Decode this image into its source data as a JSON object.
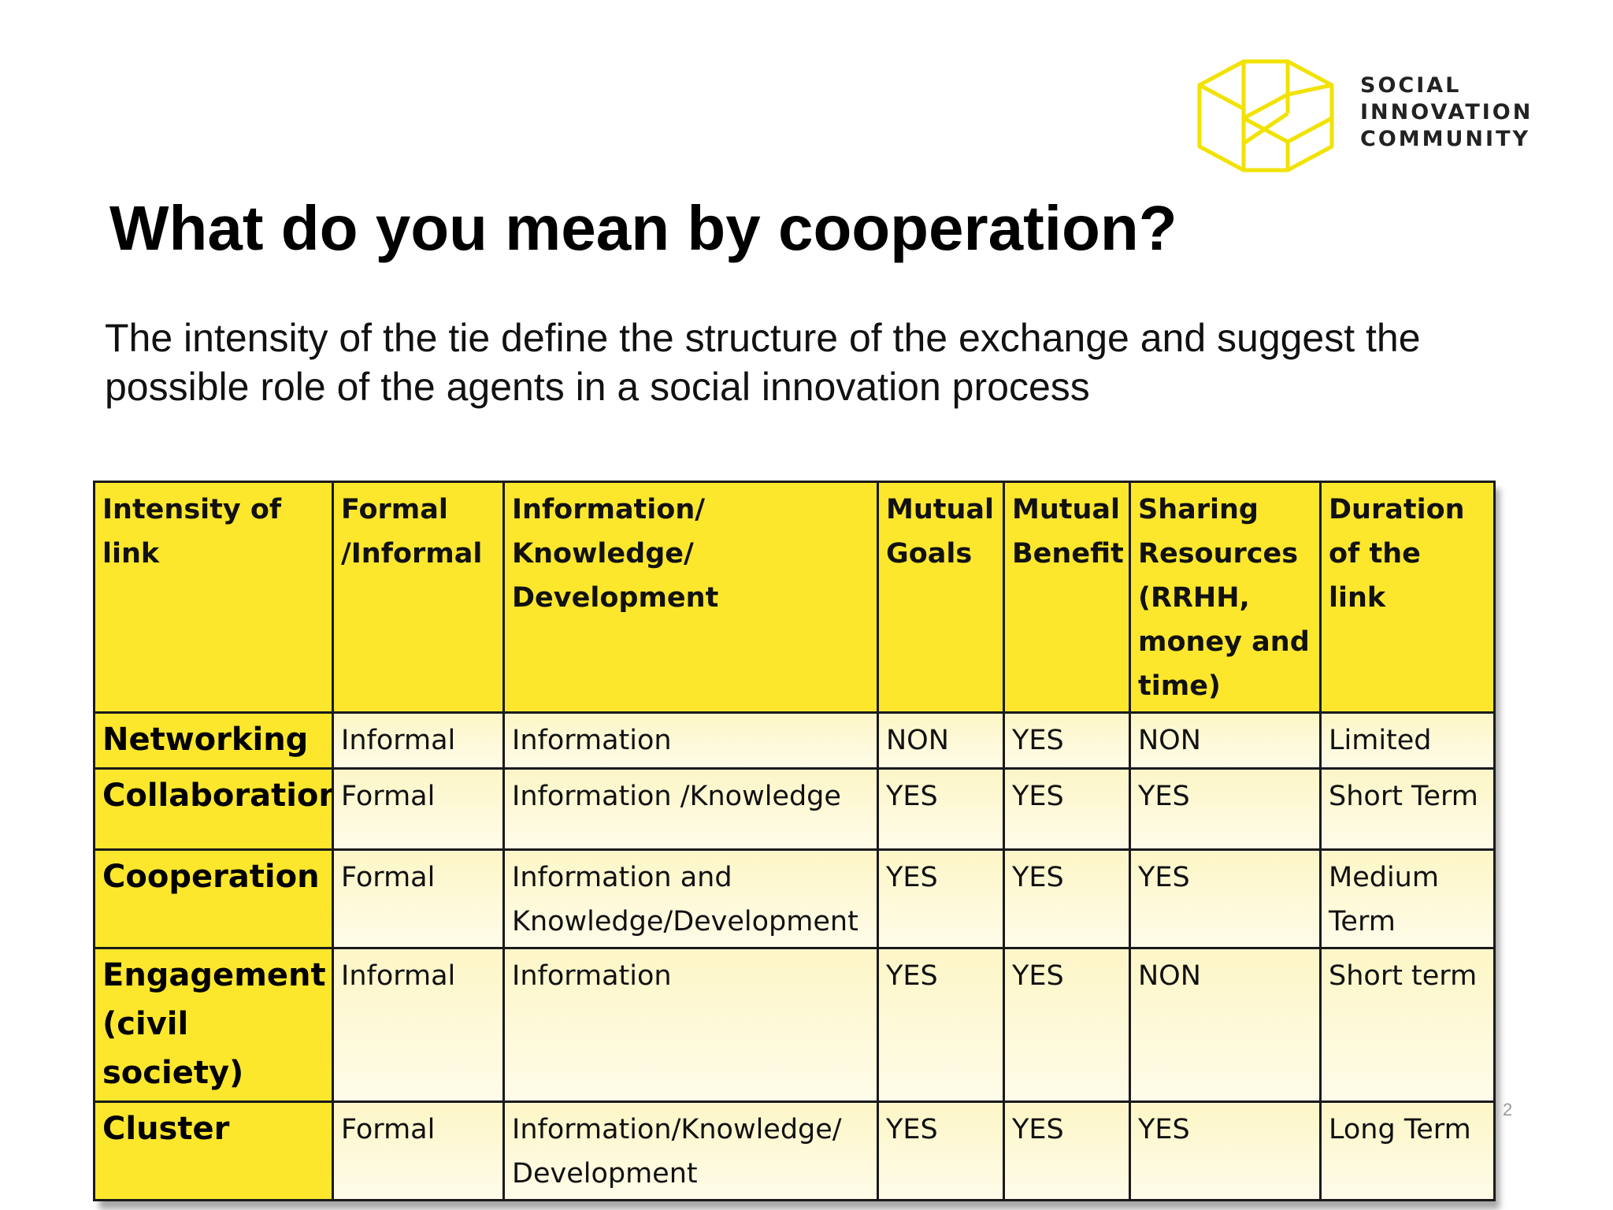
{
  "logo": {
    "lines": [
      "SOCIAL",
      "INNOVATION",
      "COMMUNITY"
    ],
    "icon": "hexagon-cube-icon",
    "color": "#f2e200"
  },
  "title": "What do you mean by cooperation?",
  "subtitle": "The intensity of the tie define the structure of the exchange and suggest the possible role of the agents in a social innovation process",
  "table": {
    "headers": [
      "Intensity of link",
      "Formal /Informal",
      "Information/ Knowledge/ Development",
      "Mutual Goals",
      "Mutual Benefit",
      "Sharing Resources (RRHH, money and time)",
      "Duration of the link"
    ],
    "rows": [
      [
        "Networking",
        "Informal",
        "Information",
        "NON",
        "YES",
        "NON",
        "Limited"
      ],
      [
        "Collaboration",
        "Formal",
        "Information /Knowledge",
        "YES",
        "YES",
        "YES",
        "Short Term"
      ],
      [
        "Cooperation",
        "Formal",
        "Information and Knowledge/Development",
        "YES",
        "YES",
        "YES",
        "Medium Term"
      ],
      [
        "Engagement (civil society)",
        "Informal",
        "Information",
        "YES",
        "YES",
        "NON",
        "Short term"
      ],
      [
        "Cluster",
        "Formal",
        "Information/Knowledge/ Development",
        "YES",
        "YES",
        "YES",
        "Long Term"
      ]
    ],
    "header_color": "#fde72d",
    "cell_color": "#fdf6c7"
  },
  "page_number": "2"
}
